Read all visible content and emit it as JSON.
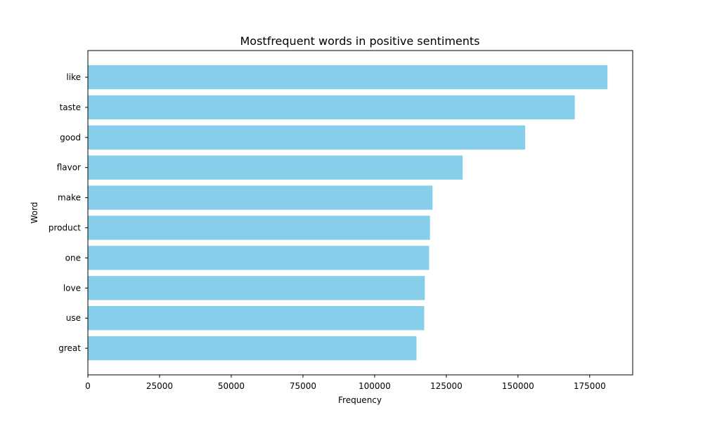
{
  "chart_data": {
    "type": "bar",
    "orientation": "horizontal",
    "title": "Mostfrequent words in positive sentiments",
    "xlabel": "Frequency",
    "ylabel": "Word",
    "categories": [
      "like",
      "taste",
      "good",
      "flavor",
      "make",
      "product",
      "one",
      "love",
      "use",
      "great"
    ],
    "values": [
      181200,
      169800,
      152500,
      130700,
      120200,
      119300,
      119000,
      117500,
      117300,
      114600
    ],
    "xlim": [
      0,
      190000
    ],
    "xticks": [
      0,
      25000,
      50000,
      75000,
      100000,
      125000,
      150000,
      175000
    ],
    "xtick_labels": [
      "0",
      "25000",
      "50000",
      "75000",
      "100000",
      "125000",
      "150000",
      "175000"
    ],
    "grid": false,
    "bar_color": "#87ceeb"
  }
}
